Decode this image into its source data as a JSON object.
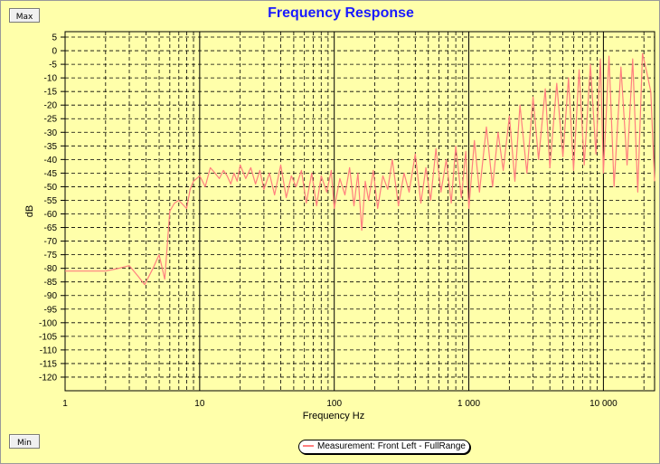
{
  "buttons": {
    "max_label": "Max",
    "min_label": "Min"
  },
  "colors": {
    "background": "#ffffaa",
    "title": "#1a1aff",
    "series": "#ff7f7f",
    "grid": "#000000"
  },
  "chart_data": {
    "type": "line",
    "title": "Frequency Response",
    "xlabel": "Frequency Hz",
    "ylabel": "dB",
    "xscale": "log",
    "xlim": [
      1,
      24000
    ],
    "ylim": [
      -125,
      7
    ],
    "x_ticks": [
      "1",
      "10",
      "100",
      "1 000",
      "10 000"
    ],
    "y_ticks": [
      "5",
      "0",
      "-5",
      "-10",
      "-15",
      "-20",
      "-25",
      "-30",
      "-35",
      "-40",
      "-45",
      "-50",
      "-55",
      "-60",
      "-65",
      "-70",
      "-75",
      "-80",
      "-85",
      "-90",
      "-95",
      "-100",
      "-105",
      "-110",
      "-115",
      "-120"
    ],
    "grid": true,
    "legend_position": "bottom",
    "series": [
      {
        "name": "Measurement: Front Left - FullRange",
        "color": "#ff7f7f",
        "x": [
          1,
          2,
          2.5,
          3,
          3.5,
          3.9,
          4.5,
          5,
          5.5,
          6,
          6.5,
          7,
          8,
          8.5,
          9,
          10,
          11,
          12,
          13,
          14,
          15,
          16,
          17,
          18,
          19,
          20,
          22,
          24,
          26,
          28,
          30,
          33,
          36,
          40,
          44,
          48,
          52,
          57,
          62,
          68,
          74,
          80,
          88,
          95,
          100,
          110,
          120,
          130,
          140,
          150,
          160,
          170,
          180,
          195,
          210,
          230,
          250,
          270,
          300,
          330,
          360,
          400,
          440,
          480,
          520,
          570,
          620,
          680,
          740,
          800,
          880,
          950,
          1000,
          1100,
          1200,
          1350,
          1500,
          1650,
          1800,
          2000,
          2200,
          2400,
          2700,
          3000,
          3300,
          3700,
          4000,
          4500,
          5000,
          5500,
          6000,
          6600,
          7200,
          8000,
          8800,
          9500,
          10000,
          11000,
          12000,
          13500,
          15000,
          16500,
          18000,
          19500,
          21000,
          22500,
          24000
        ],
        "y": [
          -81,
          -81,
          -80,
          -79,
          -83,
          -86,
          -80,
          -75,
          -84,
          -59,
          -56,
          -55,
          -58,
          -51,
          -48,
          -46,
          -50,
          -43,
          -45,
          -47,
          -44,
          -46,
          -49,
          -45,
          -48,
          -42,
          -47,
          -43,
          -49,
          -44,
          -51,
          -45,
          -53,
          -42,
          -54,
          -46,
          -50,
          -44,
          -56,
          -45,
          -57,
          -46,
          -52,
          -44,
          -58,
          -47,
          -53,
          -43,
          -57,
          -45,
          -66,
          -48,
          -55,
          -44,
          -58,
          -46,
          -51,
          -40,
          -57,
          -45,
          -52,
          -38,
          -56,
          -43,
          -55,
          -36,
          -52,
          -40,
          -56,
          -35,
          -54,
          -37,
          -58,
          -33,
          -52,
          -28,
          -50,
          -30,
          -44,
          -24,
          -48,
          -20,
          -45,
          -17,
          -40,
          -14,
          -43,
          -12,
          -39,
          -10,
          -44,
          -7,
          -42,
          -5,
          -38,
          -3,
          -45,
          -2,
          -50,
          -6,
          -42,
          -3,
          -52,
          -1,
          -8,
          -15,
          -48
        ]
      }
    ]
  }
}
